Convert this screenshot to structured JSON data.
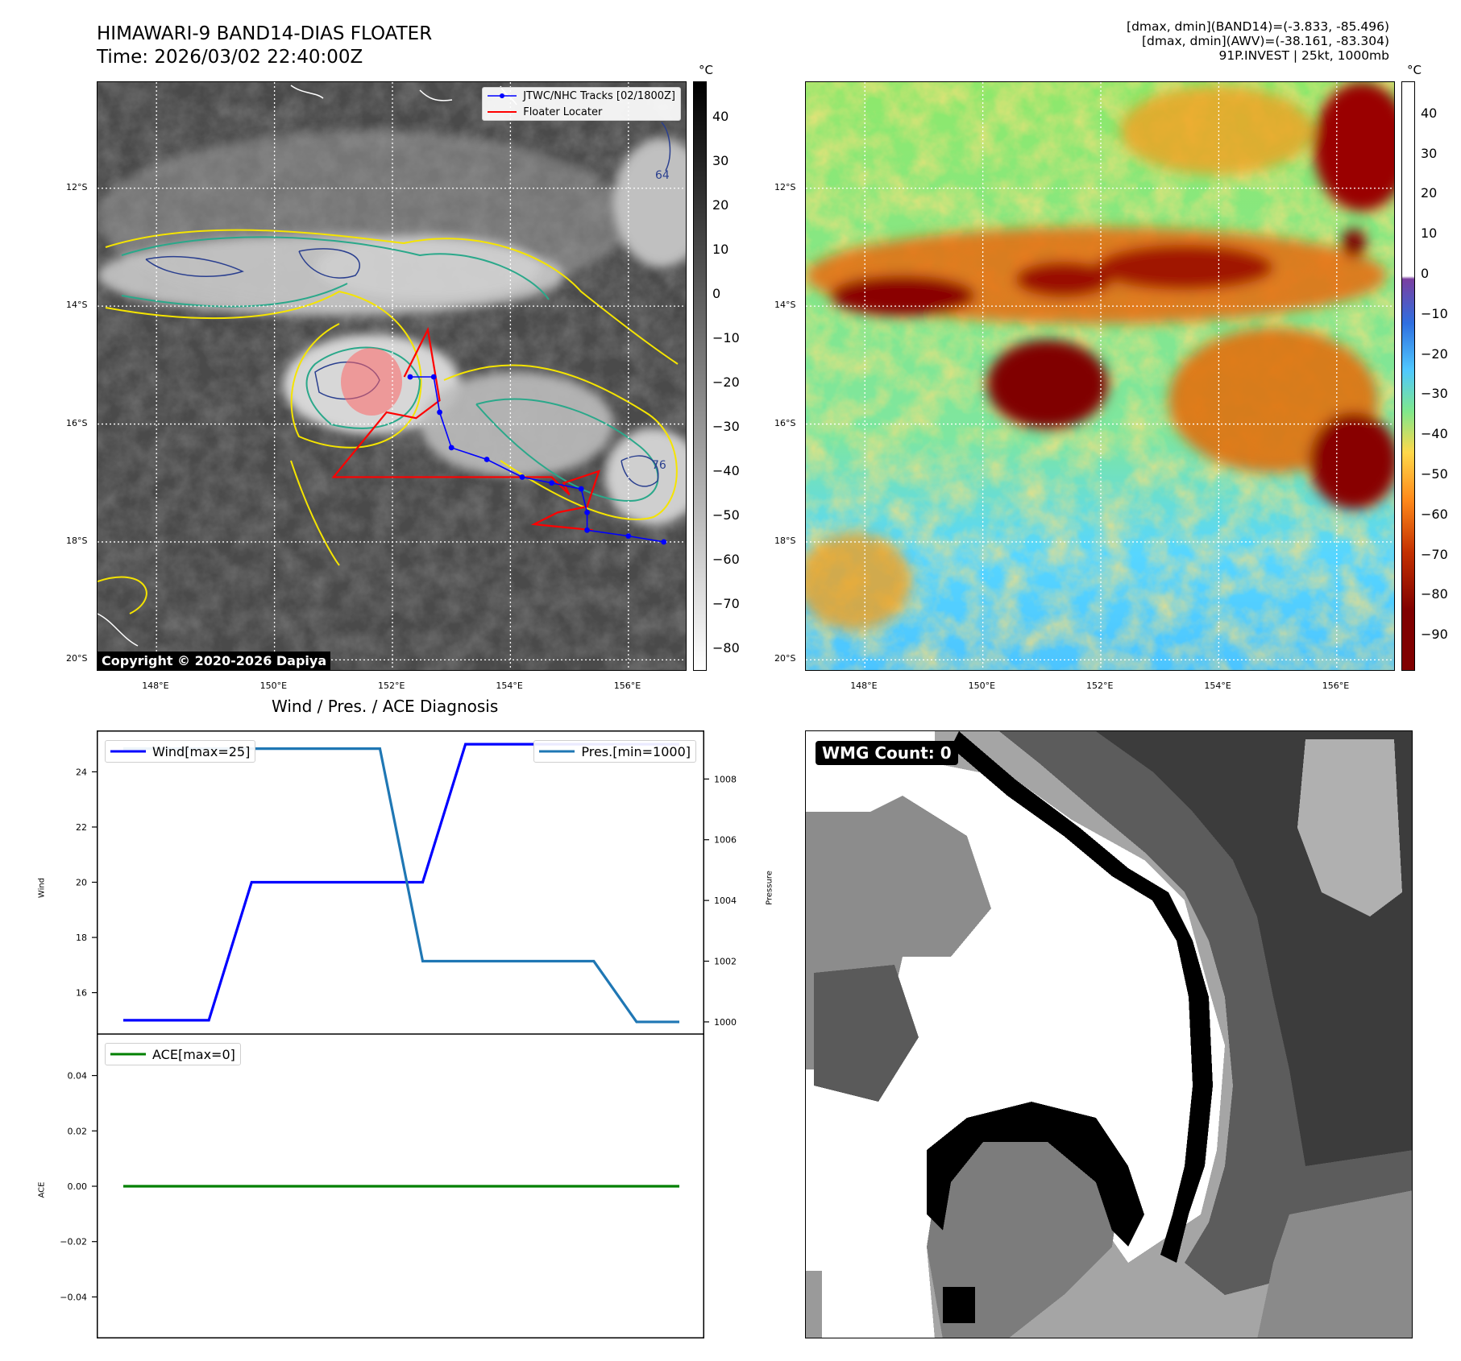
{
  "header": {
    "title_line1": "HIMAWARI-9 BAND14-DIAS FLOATER",
    "title_line2": "Time: 2026/03/02 22:40:00Z",
    "info_line1": "[dmax, dmin](BAND14)=(-3.833, -85.496)",
    "info_line2": "[dmax, dmin](AWV)=(-38.161, -83.304)",
    "info_line3": "91P.INVEST | 25kt, 1000mb"
  },
  "map_axes": {
    "lon_ticks": [
      "148°E",
      "150°E",
      "152°E",
      "154°E",
      "156°E"
    ],
    "lat_ticks": [
      "12°S",
      "14°S",
      "16°S",
      "18°S",
      "20°S"
    ],
    "lon_range": [
      147,
      157
    ],
    "lat_range": [
      -10.2,
      -20.2
    ],
    "lon_tick_values": [
      148,
      150,
      152,
      154,
      156
    ],
    "lat_tick_values": [
      -12,
      -14,
      -16,
      -18,
      -20
    ]
  },
  "ir_panel": {
    "colorbar_unit": "°C",
    "colorbar_ticks": [
      "40",
      "30",
      "20",
      "10",
      "0",
      "−10",
      "−20",
      "−30",
      "−40",
      "−50",
      "−60",
      "−70",
      "−80"
    ],
    "colorbar_range": [
      48,
      -85
    ],
    "colorbar_colors": [
      "#000000",
      "#ffffff"
    ],
    "contour_labels": [
      "64",
      "76"
    ],
    "legend_tracks": "JTWC/NHC Tracks [02/1800Z]",
    "legend_locator": "Floater Locater",
    "copyright": "Copyright © 2020-2026 Dapiya",
    "track_color": "#0000ff",
    "locator_color": "#ff0000"
  },
  "track": {
    "lon": [
      152.3,
      152.7,
      152.8,
      153.0,
      153.6,
      154.2,
      154.7,
      155.2,
      155.3,
      155.3,
      156.0,
      156.6
    ],
    "lat": [
      -15.2,
      -15.2,
      -15.8,
      -16.4,
      -16.6,
      -16.9,
      -17.0,
      -17.1,
      -17.5,
      -17.8,
      -17.9,
      -18.0
    ]
  },
  "locator": {
    "lon": [
      152.2,
      152.6,
      152.8,
      152.4,
      151.9,
      151.0,
      154.0,
      154.7,
      155.0,
      154.9,
      155.5,
      155.3,
      154.8,
      154.4,
      155.4
    ],
    "lat": [
      -15.2,
      -14.4,
      -15.6,
      -15.9,
      -15.8,
      -16.9,
      -16.9,
      -16.9,
      -17.2,
      -17.0,
      -16.8,
      -17.4,
      -17.5,
      -17.7,
      -17.8
    ]
  },
  "wv_panel": {
    "colorbar_unit": "°C",
    "colorbar_ticks": [
      "40",
      "30",
      "20",
      "10",
      "0",
      "−10",
      "−20",
      "−30",
      "−40",
      "−50",
      "−60",
      "−70",
      "−80",
      "−90"
    ],
    "colorbar_range": [
      48,
      -99
    ],
    "colorbar_colors": [
      "#ffffff",
      "#7a3fa0",
      "#2f6fe0",
      "#4fc8ff",
      "#7fe88c",
      "#ffd84a",
      "#ff8a1a",
      "#c33000",
      "#800000"
    ]
  },
  "diagnosis": {
    "title": "Wind / Pres. / ACE Diagnosis",
    "wind_ylabel": "Wind",
    "pressure_ylabel": "Pressure",
    "ace_ylabel": "ACE",
    "wind_legend": "Wind[max=25]",
    "pres_legend": "Pres.[min=1000]",
    "ace_legend": "ACE[max=0]",
    "wind_ticks": [
      "24",
      "22",
      "20",
      "18",
      "16"
    ],
    "pres_ticks": [
      "1008",
      "1006",
      "1004",
      "1002",
      "1000"
    ],
    "ace_ticks": [
      "0.04",
      "0.02",
      "0.00",
      "−0.02",
      "−0.04"
    ]
  },
  "chart_data": [
    {
      "type": "line",
      "title": "Wind / Pres. / ACE Diagnosis",
      "ylabel": "Wind",
      "ylim": [
        14.5,
        25.5
      ],
      "series": [
        {
          "name": "Wind[max=25]",
          "color": "#0000ff",
          "x": [
            0,
            1,
            2,
            3,
            4,
            5,
            6,
            7,
            8,
            9,
            10,
            11,
            12,
            13
          ],
          "values": [
            15,
            15,
            15,
            20,
            20,
            20,
            20,
            20,
            25,
            25,
            25,
            25,
            25,
            25
          ]
        }
      ]
    },
    {
      "type": "line",
      "ylabel": "Pressure",
      "ylim": [
        999.6,
        1009.6
      ],
      "series": [
        {
          "name": "Pres.[min=1000]",
          "color": "#1f77b4",
          "x": [
            0,
            1,
            2,
            3,
            4,
            5,
            6,
            7,
            8,
            9,
            10,
            11,
            12,
            13
          ],
          "values": [
            1009,
            1009,
            1009,
            1009,
            1009,
            1009,
            1009,
            1002,
            1002,
            1002,
            1002,
            1002,
            1000,
            1000
          ]
        }
      ]
    },
    {
      "type": "line",
      "ylabel": "ACE",
      "ylim": [
        -0.055,
        0.055
      ],
      "series": [
        {
          "name": "ACE[max=0]",
          "color": "#008000",
          "x": [
            0,
            13
          ],
          "values": [
            0,
            0
          ]
        }
      ]
    }
  ],
  "wmg": {
    "label": "WMG Count: 0"
  }
}
